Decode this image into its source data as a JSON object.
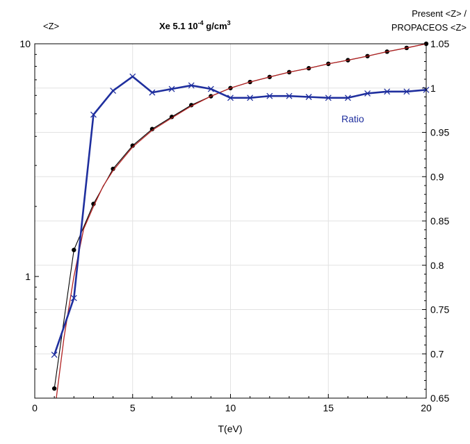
{
  "chart_data": {
    "type": "line",
    "title": {
      "main": "Xe 5.1 10",
      "exp": "-4",
      "unit": " g/cm",
      "unit_exp": "3"
    },
    "left_axis_label": "<Z>",
    "right_axis_label_1": "Present <Z> /",
    "right_axis_label_2": "PROPACEOS <Z>",
    "xlabel": "T(eV)",
    "xlim": [
      0,
      20
    ],
    "xticks": [
      0,
      5,
      10,
      15,
      20
    ],
    "xtick_labels": [
      "0",
      "5",
      "10",
      "15",
      "20"
    ],
    "ylim_left": [
      0.3,
      10
    ],
    "yscale_left": "log",
    "yticks_left": [
      1,
      10
    ],
    "ytick_labels_left": [
      "1",
      "10"
    ],
    "ylim_right": [
      0.65,
      1.05
    ],
    "yticks_right": [
      0.65,
      0.7,
      0.75,
      0.8,
      0.85,
      0.9,
      0.95,
      1.0,
      1.05
    ],
    "ytick_labels_right": [
      "0.65",
      "0.7",
      "0.75",
      "0.8",
      "0.85",
      "0.9",
      "0.95",
      "1",
      "1.05"
    ],
    "grid": true,
    "annotation": "Ratio",
    "series": [
      {
        "axis": "left",
        "marker": "dot",
        "color": "#000000",
        "x": [
          1,
          2,
          3,
          4,
          5,
          6,
          7,
          8,
          9,
          10,
          11,
          12,
          13,
          14,
          15,
          16,
          17,
          18,
          19,
          20
        ],
        "y": [
          0.33,
          1.3,
          2.05,
          2.9,
          3.65,
          4.3,
          4.85,
          5.45,
          5.95,
          6.45,
          6.85,
          7.2,
          7.55,
          7.85,
          8.2,
          8.5,
          8.85,
          9.25,
          9.6,
          10.0
        ]
      },
      {
        "axis": "left",
        "marker": "none",
        "color": "#b22222",
        "x": [
          1.1,
          1.5,
          2,
          2.5,
          3,
          3.5,
          4,
          5,
          6,
          7,
          8,
          9,
          10,
          11,
          12,
          13,
          14,
          15,
          16,
          17,
          18,
          19,
          20
        ],
        "y": [
          0.3,
          0.55,
          1.0,
          1.6,
          2.0,
          2.45,
          2.85,
          3.6,
          4.25,
          4.8,
          5.4,
          5.95,
          6.45,
          6.85,
          7.2,
          7.55,
          7.85,
          8.2,
          8.5,
          8.85,
          9.25,
          9.6,
          10.0
        ]
      },
      {
        "name": "Ratio",
        "axis": "right",
        "marker": "x",
        "color": "#1f2f9e",
        "x": [
          1,
          2,
          3,
          4,
          5,
          6,
          7,
          8,
          9,
          10,
          11,
          12,
          13,
          14,
          15,
          16,
          17,
          18,
          19,
          20
        ],
        "y": [
          0.699,
          0.763,
          0.97,
          0.997,
          1.013,
          0.995,
          0.999,
          1.003,
          0.999,
          0.989,
          0.989,
          0.991,
          0.991,
          0.99,
          0.989,
          0.989,
          0.994,
          0.996,
          0.996,
          0.998
        ]
      }
    ]
  }
}
